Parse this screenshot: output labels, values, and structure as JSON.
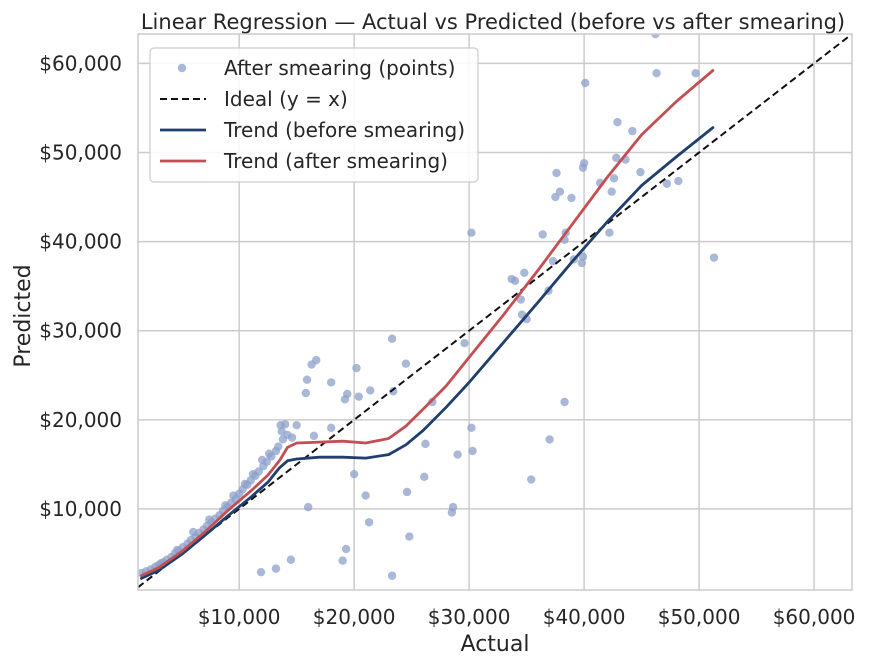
{
  "chart_data": {
    "type": "scatter",
    "title": "Linear Regression — Actual vs Predicted (before vs after smearing)",
    "xlabel": "Actual",
    "ylabel": "Predicted",
    "xlim": [
      1200,
      63300
    ],
    "ylim": [
      900,
      63300
    ],
    "grid": true,
    "legend_position": "upper-left",
    "x_ticks": [
      {
        "value": 10000,
        "label": "$10,000"
      },
      {
        "value": 20000,
        "label": "$20,000"
      },
      {
        "value": 30000,
        "label": "$30,000"
      },
      {
        "value": 40000,
        "label": "$40,000"
      },
      {
        "value": 50000,
        "label": "$50,000"
      },
      {
        "value": 60000,
        "label": "$60,000"
      }
    ],
    "y_ticks": [
      {
        "value": 10000,
        "label": "$10,000"
      },
      {
        "value": 20000,
        "label": "$20,000"
      },
      {
        "value": 30000,
        "label": "$30,000"
      },
      {
        "value": 40000,
        "label": "$40,000"
      },
      {
        "value": 50000,
        "label": "$50,000"
      },
      {
        "value": 60000,
        "label": "$60,000"
      }
    ],
    "legend": [
      {
        "label": "After smearing (points)",
        "kind": "marker",
        "color": "#8da0cb"
      },
      {
        "label": "Ideal (y = x)",
        "kind": "dashed",
        "color": "#111111"
      },
      {
        "label": "Trend (before smearing)",
        "kind": "line",
        "color": "#1f3f6e"
      },
      {
        "label": "Trend (after smearing)",
        "kind": "line",
        "color": "#c44e52"
      }
    ],
    "series": [
      {
        "name": "After smearing (points)",
        "kind": "scatter",
        "color": "#8da0cb",
        "points": [
          [
            1500,
            2800
          ],
          [
            1900,
            3000
          ],
          [
            2300,
            3200
          ],
          [
            2700,
            3500
          ],
          [
            3000,
            3700
          ],
          [
            3400,
            4000
          ],
          [
            3700,
            4300
          ],
          [
            4100,
            4600
          ],
          [
            4400,
            5000
          ],
          [
            4800,
            5300
          ],
          [
            5100,
            5700
          ],
          [
            5500,
            6100
          ],
          [
            5800,
            6500
          ],
          [
            6200,
            6900
          ],
          [
            6500,
            7300
          ],
          [
            6900,
            7700
          ],
          [
            7200,
            8100
          ],
          [
            7600,
            8500
          ],
          [
            7900,
            8900
          ],
          [
            8300,
            9300
          ],
          [
            8600,
            9800
          ],
          [
            9000,
            10200
          ],
          [
            9300,
            10700
          ],
          [
            9700,
            11100
          ],
          [
            10000,
            11700
          ],
          [
            10300,
            12200
          ],
          [
            10700,
            12700
          ],
          [
            11000,
            13200
          ],
          [
            11400,
            13700
          ],
          [
            11700,
            14200
          ],
          [
            12100,
            14800
          ],
          [
            12400,
            15300
          ],
          [
            12800,
            15900
          ],
          [
            13200,
            16500
          ],
          [
            3200,
            3900
          ],
          [
            4600,
            5400
          ],
          [
            6000,
            7400
          ],
          [
            7400,
            8800
          ],
          [
            8800,
            10400
          ],
          [
            9500,
            11500
          ],
          [
            10500,
            12800
          ],
          [
            11200,
            13900
          ],
          [
            12000,
            15500
          ],
          [
            12600,
            16200
          ],
          [
            13400,
            17000
          ],
          [
            13800,
            17800
          ],
          [
            14200,
            18300
          ],
          [
            13700,
            18700
          ],
          [
            14600,
            18000
          ],
          [
            15000,
            19400
          ],
          [
            13600,
            19400
          ],
          [
            14000,
            19500
          ],
          [
            16500,
            18200
          ],
          [
            18000,
            19100
          ],
          [
            15800,
            23000
          ],
          [
            15900,
            24500
          ],
          [
            16300,
            26200
          ],
          [
            16700,
            26700
          ],
          [
            18000,
            24200
          ],
          [
            19200,
            22300
          ],
          [
            19400,
            22900
          ],
          [
            20200,
            25800
          ],
          [
            20400,
            22600
          ],
          [
            21400,
            23300
          ],
          [
            23400,
            23200
          ],
          [
            23300,
            29100
          ],
          [
            24500,
            26300
          ],
          [
            26800,
            22000
          ],
          [
            29600,
            28600
          ],
          [
            30200,
            41000
          ],
          [
            30200,
            19100
          ],
          [
            30300,
            16500
          ],
          [
            29000,
            16100
          ],
          [
            28500,
            9600
          ],
          [
            28600,
            10200
          ],
          [
            26200,
            17300
          ],
          [
            26100,
            13600
          ],
          [
            24600,
            11900
          ],
          [
            24800,
            6900
          ],
          [
            23300,
            2500
          ],
          [
            21000,
            11500
          ],
          [
            21300,
            8500
          ],
          [
            20000,
            13900
          ],
          [
            19300,
            5500
          ],
          [
            19000,
            4200
          ],
          [
            16000,
            10200
          ],
          [
            14500,
            4300
          ],
          [
            13200,
            3300
          ],
          [
            11900,
            2900
          ],
          [
            33700,
            35800
          ],
          [
            34000,
            35600
          ],
          [
            34500,
            33500
          ],
          [
            34600,
            31800
          ],
          [
            34800,
            36500
          ],
          [
            35000,
            31300
          ],
          [
            35400,
            13300
          ],
          [
            36400,
            40800
          ],
          [
            36900,
            34500
          ],
          [
            37000,
            17800
          ],
          [
            37300,
            37800
          ],
          [
            37500,
            45000
          ],
          [
            37600,
            47700
          ],
          [
            37900,
            45600
          ],
          [
            38300,
            40200
          ],
          [
            38300,
            22000
          ],
          [
            38400,
            41000
          ],
          [
            38900,
            44900
          ],
          [
            39100,
            38000
          ],
          [
            39800,
            37600
          ],
          [
            39900,
            38300
          ],
          [
            39900,
            48300
          ],
          [
            40000,
            48800
          ],
          [
            40100,
            57800
          ],
          [
            41400,
            46600
          ],
          [
            42200,
            41000
          ],
          [
            42400,
            45600
          ],
          [
            42600,
            47100
          ],
          [
            42800,
            49400
          ],
          [
            42900,
            53400
          ],
          [
            43600,
            49200
          ],
          [
            44200,
            52400
          ],
          [
            44900,
            47800
          ],
          [
            46200,
            63300
          ],
          [
            46300,
            58900
          ],
          [
            47200,
            46500
          ],
          [
            48200,
            46800
          ],
          [
            49700,
            58900
          ],
          [
            51300,
            38200
          ]
        ]
      },
      {
        "name": "Ideal (y = x)",
        "kind": "dashed",
        "color": "#111111",
        "points": [
          [
            1200,
            1200
          ],
          [
            63300,
            63300
          ]
        ]
      },
      {
        "name": "Trend (before smearing)",
        "kind": "line",
        "color": "#1f3f6e",
        "points": [
          [
            1500,
            2200
          ],
          [
            3000,
            3100
          ],
          [
            5000,
            4900
          ],
          [
            7000,
            7000
          ],
          [
            9000,
            9200
          ],
          [
            11000,
            11300
          ],
          [
            12500,
            13000
          ],
          [
            13500,
            14600
          ],
          [
            14200,
            15400
          ],
          [
            15000,
            15600
          ],
          [
            17000,
            15800
          ],
          [
            19000,
            15800
          ],
          [
            21000,
            15700
          ],
          [
            23000,
            16100
          ],
          [
            24500,
            17200
          ],
          [
            26000,
            18800
          ],
          [
            28000,
            21400
          ],
          [
            30000,
            24200
          ],
          [
            33000,
            28700
          ],
          [
            36000,
            33200
          ],
          [
            39000,
            37800
          ],
          [
            42000,
            42200
          ],
          [
            45000,
            46300
          ],
          [
            48000,
            49500
          ],
          [
            51200,
            52800
          ]
        ]
      },
      {
        "name": "Trend (after smearing)",
        "kind": "line",
        "color": "#c44e52",
        "points": [
          [
            1500,
            2500
          ],
          [
            3000,
            3400
          ],
          [
            5000,
            5200
          ],
          [
            7000,
            7400
          ],
          [
            9000,
            9800
          ],
          [
            11000,
            12000
          ],
          [
            12500,
            13800
          ],
          [
            13500,
            15400
          ],
          [
            14200,
            16900
          ],
          [
            15000,
            17400
          ],
          [
            17000,
            17500
          ],
          [
            19000,
            17600
          ],
          [
            21000,
            17400
          ],
          [
            23000,
            17900
          ],
          [
            24500,
            19300
          ],
          [
            26000,
            21200
          ],
          [
            28000,
            23800
          ],
          [
            30000,
            27000
          ],
          [
            33000,
            31800
          ],
          [
            36000,
            36800
          ],
          [
            39000,
            42000
          ],
          [
            42000,
            47200
          ],
          [
            45000,
            52000
          ],
          [
            48000,
            55700
          ],
          [
            51200,
            59200
          ]
        ]
      }
    ]
  }
}
